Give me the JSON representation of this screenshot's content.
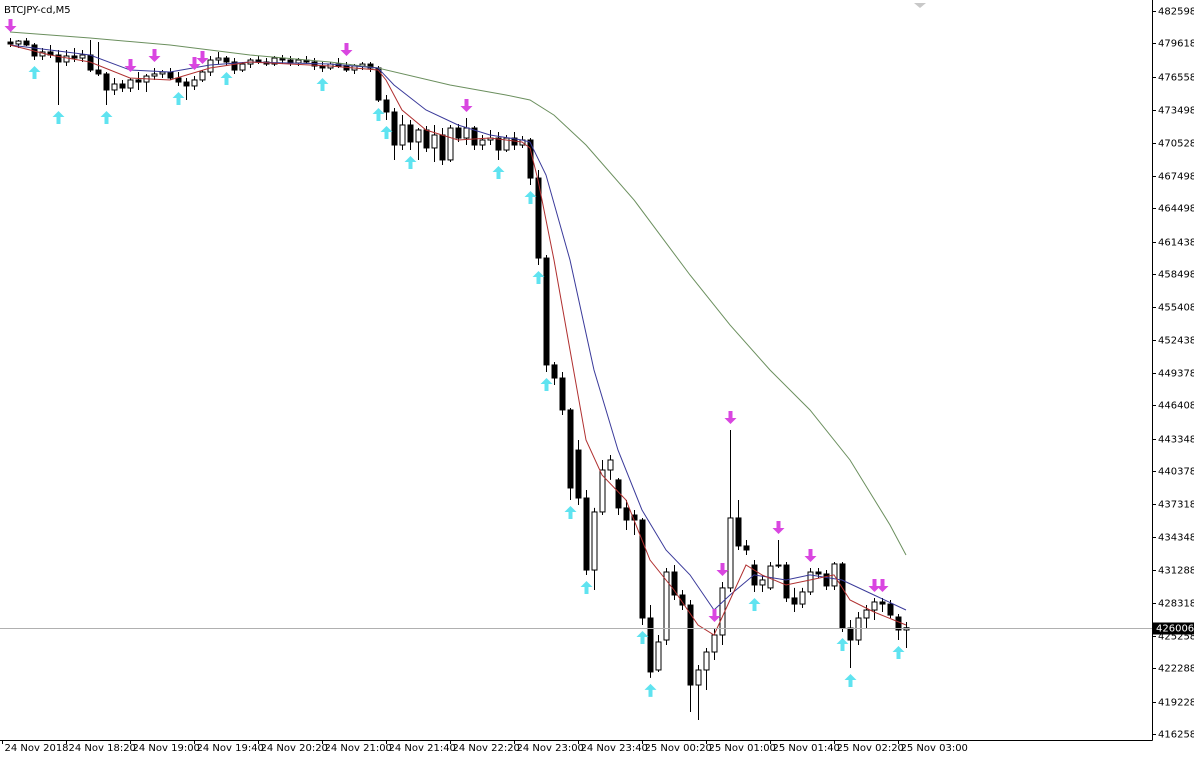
{
  "chart_data": {
    "type": "candlestick",
    "title": "BTCJPY-cd,M5",
    "xlim": [
      -1.25,
      142.75
    ],
    "xticks": [
      {
        "value": -1,
        "label": "24 Nov 2018"
      },
      {
        "value": 7,
        "label": "24 Nov 18:20"
      },
      {
        "value": 15,
        "label": "24 Nov 19:00"
      },
      {
        "value": 23,
        "label": "24 Nov 19:40"
      },
      {
        "value": 31,
        "label": "24 Nov 20:20"
      },
      {
        "value": 39,
        "label": "24 Nov 21:00"
      },
      {
        "value": 47,
        "label": "24 Nov 21:40"
      },
      {
        "value": 55,
        "label": "24 Nov 22:20"
      },
      {
        "value": 63,
        "label": "24 Nov 23:00"
      },
      {
        "value": 71,
        "label": "24 Nov 23:40"
      },
      {
        "value": 79,
        "label": "25 Nov 00:20"
      },
      {
        "value": 87,
        "label": "25 Nov 01:00"
      },
      {
        "value": 95,
        "label": "25 Nov 01:40"
      },
      {
        "value": 103,
        "label": "25 Nov 02:20"
      },
      {
        "value": 111,
        "label": "25 Nov 03:00"
      }
    ],
    "ylim": [
      415705,
      483607
    ],
    "yticks": [
      482598,
      479618,
      476558,
      473498,
      470528,
      467498,
      464498,
      461438,
      458498,
      455408,
      452438,
      449378,
      446408,
      443348,
      440378,
      437318,
      434348,
      431288,
      428318,
      425258,
      422288,
      419228,
      416258
    ],
    "current_price": 426006,
    "up_color": "#ffffff",
    "down_color": "#000000",
    "open": [
      479750,
      479570,
      479840,
      479480,
      478470,
      478840,
      478560,
      477920,
      478470,
      478280,
      478560,
      477180,
      476820,
      475350,
      475900,
      475530,
      476270,
      476080,
      476630,
      476820,
      477000,
      476450,
      476080,
      475720,
      476270,
      477000,
      478100,
      478280,
      477920,
      477180,
      477730,
      478100,
      477920,
      477730,
      478280,
      478100,
      477830,
      478100,
      477920,
      477550,
      477370,
      477730,
      477550,
      477180,
      477550,
      477730,
      477370,
      474430,
      473330,
      470300,
      472140,
      470580,
      471680,
      470030,
      471220,
      468930,
      471860,
      470940,
      471860,
      470300,
      470760,
      470940,
      469840,
      470940,
      470300,
      470760,
      467270,
      459930,
      450120,
      448920,
      445990,
      442310,
      437910,
      431300,
      436630,
      440480,
      439570,
      437000,
      436350,
      435890,
      426900,
      422130,
      424880,
      431120,
      429010,
      428090,
      420750,
      422130,
      423780,
      425340,
      429660,
      436080,
      433510,
      431760,
      429930,
      429660,
      431670,
      431760,
      428740,
      428180,
      429290,
      431120,
      430940,
      429840,
      431860,
      425980,
      424880,
      426900,
      427630,
      428370,
      428180,
      426990,
      425800
    ],
    "high": [
      480120,
      479940,
      480120,
      479660,
      479200,
      479480,
      479020,
      479020,
      479200,
      479020,
      479940,
      479750,
      477000,
      476450,
      476270,
      476450,
      477000,
      476820,
      477370,
      477180,
      477370,
      477000,
      476450,
      476630,
      477180,
      478470,
      478840,
      478470,
      478280,
      477920,
      478280,
      478470,
      478280,
      478470,
      478560,
      478470,
      478280,
      478470,
      478280,
      477920,
      477920,
      478280,
      477920,
      477730,
      477920,
      477920,
      477550,
      474890,
      473700,
      473050,
      472600,
      471860,
      472050,
      472140,
      471860,
      472140,
      472230,
      472780,
      472050,
      471220,
      471680,
      471490,
      471220,
      471490,
      471130,
      470940,
      468010,
      460210,
      450390,
      449470,
      446170,
      443230,
      438650,
      437000,
      441400,
      441860,
      439750,
      437730,
      436810,
      436080,
      428090,
      425340,
      431490,
      431760,
      429470,
      428550,
      422590,
      424150,
      425980,
      430200,
      444150,
      437730,
      434060,
      432220,
      430850,
      432040,
      434060,
      432040,
      429660,
      429660,
      431490,
      431490,
      431300,
      432040,
      432040,
      426720,
      427450,
      428090,
      428740,
      428740,
      428550,
      427270,
      426530
    ],
    "low": [
      479290,
      479200,
      479380,
      478100,
      478100,
      478280,
      473970,
      477550,
      477920,
      477920,
      477000,
      476630,
      473970,
      474890,
      475170,
      475170,
      475350,
      475170,
      476270,
      476450,
      476270,
      475720,
      474430,
      475350,
      476080,
      476630,
      477730,
      477550,
      476820,
      477000,
      477370,
      477730,
      477550,
      477550,
      477730,
      477550,
      477550,
      477730,
      477180,
      477000,
      477180,
      477370,
      477000,
      476820,
      477180,
      477000,
      474250,
      472600,
      468930,
      469840,
      469840,
      468930,
      469660,
      468740,
      468470,
      468740,
      470580,
      470300,
      469840,
      469840,
      470300,
      468930,
      469660,
      469840,
      470030,
      466630,
      459290,
      449470,
      448280,
      445530,
      437730,
      437270,
      430850,
      429470,
      436350,
      439570,
      436350,
      434980,
      434520,
      426260,
      421400,
      421950,
      424420,
      428550,
      427630,
      418280,
      417540,
      420290,
      423050,
      424420,
      429290,
      433140,
      432680,
      429290,
      429290,
      429470,
      431490,
      428370,
      427450,
      427820,
      429010,
      430570,
      429470,
      429470,
      425620,
      422310,
      424420,
      425980,
      426720,
      427450,
      426900,
      424880,
      424150
    ],
    "close": [
      479570,
      479840,
      479480,
      478470,
      478840,
      478560,
      477920,
      478470,
      478280,
      478560,
      477180,
      476820,
      475350,
      475900,
      475530,
      476270,
      476080,
      476630,
      476820,
      477000,
      476450,
      476080,
      475720,
      476270,
      477000,
      478100,
      478280,
      477920,
      477180,
      477730,
      478100,
      477920,
      477730,
      478280,
      478100,
      477830,
      478100,
      477920,
      477550,
      477370,
      477730,
      477550,
      477180,
      477550,
      477730,
      477370,
      474430,
      473330,
      470300,
      472140,
      470580,
      471680,
      470030,
      471220,
      468930,
      471860,
      470940,
      471860,
      470300,
      470760,
      470940,
      469840,
      470940,
      470300,
      470760,
      467270,
      459930,
      450120,
      448920,
      445990,
      438830,
      437910,
      431300,
      436630,
      440480,
      441400,
      437000,
      435890,
      435890,
      426900,
      421950,
      424700,
      431120,
      429010,
      428090,
      420750,
      422130,
      423780,
      425340,
      429660,
      436080,
      433510,
      433140,
      429930,
      430390,
      431670,
      431760,
      428740,
      428180,
      429290,
      431120,
      430940,
      429840,
      431860,
      425980,
      424880,
      426900,
      427630,
      428370,
      428180,
      427170,
      425800,
      426006
    ],
    "moving_averages": [
      {
        "color": "#6b8f5e",
        "x": [
          0,
          10,
          20,
          30,
          40,
          46,
          55,
          62,
          65,
          68,
          72,
          78,
          85,
          90,
          95,
          100,
          105,
          110,
          112
        ],
        "values": [
          480670,
          480120,
          479480,
          478560,
          477920,
          477370,
          475810,
          474890,
          474430,
          473050,
          470300,
          465260,
          458370,
          453790,
          449660,
          445990,
          441400,
          435430,
          432680
        ]
      },
      {
        "color": "#3a3a9a",
        "x": [
          0,
          5,
          10,
          15,
          20,
          25,
          30,
          40,
          46,
          48,
          52,
          56,
          60,
          64,
          65,
          67,
          70,
          73,
          76,
          79,
          82,
          85,
          88,
          90,
          93,
          97,
          100,
          104,
          108,
          112
        ],
        "values": [
          479480,
          479020,
          478560,
          477180,
          477000,
          477640,
          477920,
          477730,
          477370,
          475810,
          473510,
          472140,
          471220,
          470760,
          470580,
          467550,
          459750,
          449660,
          442310,
          436810,
          433140,
          430850,
          427630,
          429010,
          430850,
          430390,
          430850,
          430390,
          429010,
          427630
        ]
      },
      {
        "color": "#b03030",
        "x": [
          0,
          5,
          10,
          15,
          20,
          25,
          30,
          40,
          46,
          47,
          49,
          52,
          56,
          60,
          64,
          65,
          66,
          68,
          70,
          72,
          74,
          77,
          80,
          83,
          86,
          88,
          90,
          92,
          94,
          97,
          100,
          103,
          105,
          108,
          112
        ],
        "values": [
          479480,
          478560,
          477920,
          476450,
          476270,
          477370,
          477920,
          477550,
          477180,
          476270,
          473510,
          471680,
          470760,
          470940,
          470580,
          470030,
          467090,
          459750,
          451490,
          443230,
          440020,
          437730,
          432220,
          429470,
          426260,
          425340,
          428550,
          431760,
          430850,
          429930,
          430390,
          430850,
          428550,
          427450,
          426260
        ]
      }
    ],
    "buy_signals": [
      3,
      6,
      12,
      21,
      27,
      39,
      46,
      47,
      50,
      61,
      65,
      66,
      67,
      70,
      72,
      79,
      80,
      93,
      104,
      105,
      111
    ],
    "buy_color": "#5fe3f0",
    "sell_signals": [
      0,
      15,
      18,
      23,
      24,
      42,
      57,
      88,
      89,
      90,
      96,
      100,
      108,
      109
    ],
    "sell_color": "#d946e0"
  }
}
